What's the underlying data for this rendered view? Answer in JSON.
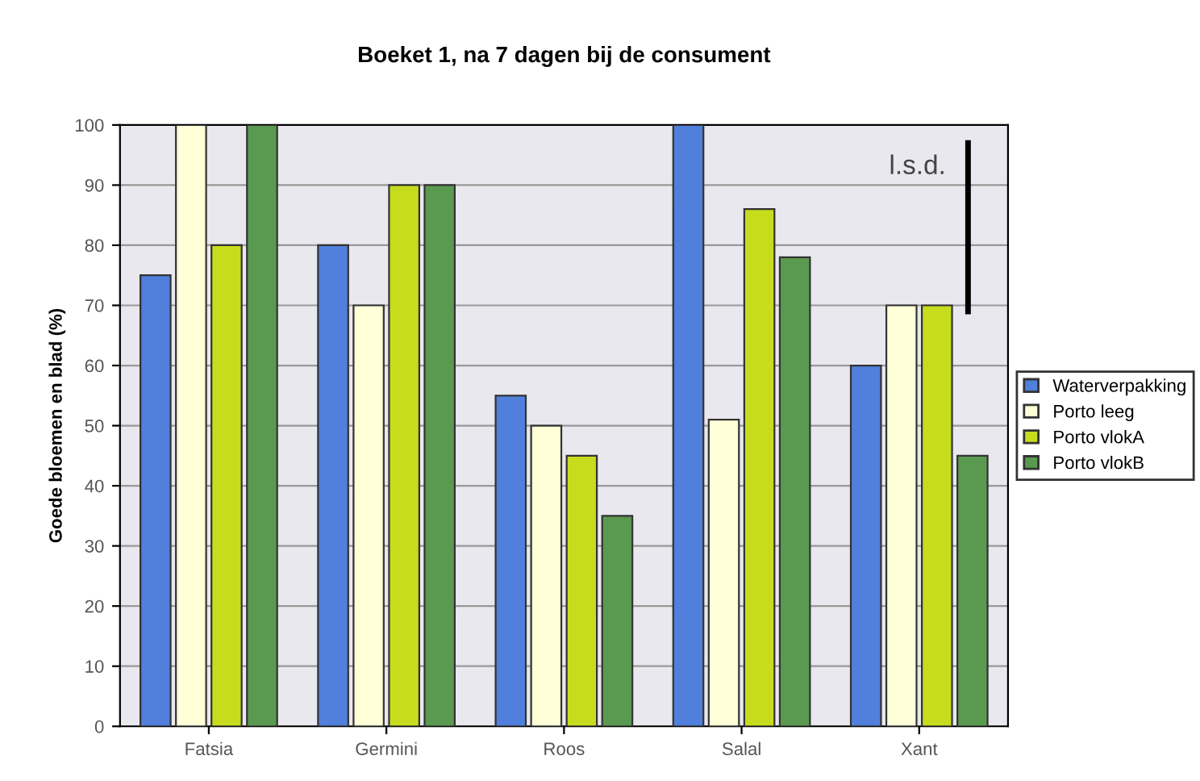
{
  "chart_data": {
    "type": "bar",
    "title": "Boeket 1, na 7 dagen bij de consument",
    "ylabel": "Goede bloemen en blad (%)",
    "categories": [
      "Fatsia",
      "Germini",
      "Roos",
      "Salal",
      "Xant"
    ],
    "series": [
      {
        "name": "Waterverpakking",
        "color": "#5080dc",
        "values": [
          75,
          80,
          55,
          100,
          60
        ]
      },
      {
        "name": "Porto leeg",
        "color": "#ffffd8",
        "values": [
          100,
          70,
          50,
          51,
          70
        ]
      },
      {
        "name": "Porto vlokA",
        "color": "#c8dc1e",
        "values": [
          80,
          90,
          45,
          86,
          70
        ]
      },
      {
        "name": "Porto vlokB",
        "color": "#5a9a50",
        "values": [
          100,
          90,
          35,
          78,
          45
        ]
      }
    ],
    "ylim": [
      0,
      100
    ],
    "yticks": [
      0,
      10,
      20,
      30,
      40,
      50,
      60,
      70,
      80,
      90,
      100
    ],
    "annotations": [
      "l.s.d."
    ],
    "grid": "y",
    "legend": "right"
  }
}
